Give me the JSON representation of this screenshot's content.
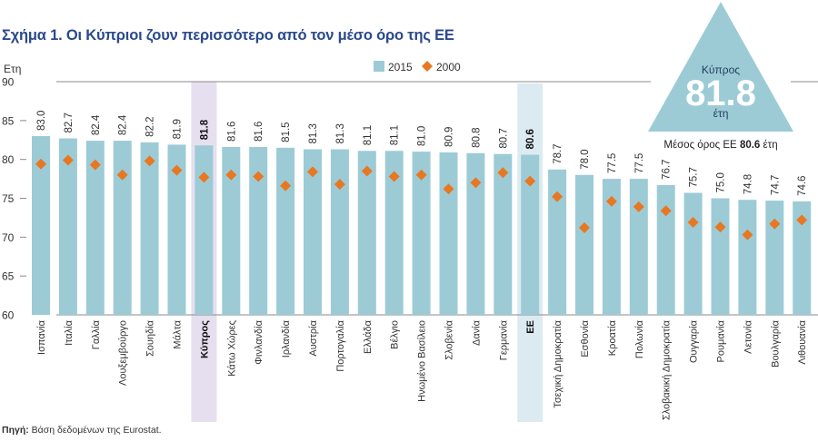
{
  "title": "Σχήμα 1. Οι Κύπριοι ζουν περισσότερο από τον μέσο όρο της ΕΕ",
  "source": {
    "label": "Πηγή:",
    "text": "Βάση δεδομένων της Eurostat."
  },
  "colors": {
    "title": "#2b4a8b",
    "bar_2015": "#9ccbd6",
    "marker_2000": "#e87722",
    "highlight_cyprus": "#e6dff0",
    "highlight_eu": "#dcebf1",
    "triangle": "#9ccbd6"
  },
  "callout": {
    "country": "Κύπρος",
    "value": "81.8",
    "unit": "έτη",
    "eu_avg_prefix": "Μέσος όρος ΕΕ",
    "eu_avg_value": "80.6",
    "eu_avg_unit": "έτη"
  },
  "chart_data": {
    "type": "bar",
    "title": "Σχήμα 1. Οι Κύπριοι ζουν περισσότερο από τον μέσο όρο της ΕΕ",
    "xlabel": "",
    "ylabel": "Ετη",
    "ylim": [
      60,
      90
    ],
    "yticks": [
      60,
      65,
      70,
      75,
      80,
      85,
      90
    ],
    "grid": false,
    "legend": {
      "placement": "top-center",
      "entries": [
        "2015",
        "2000"
      ]
    },
    "highlighted": [
      "Κύπρος",
      "ΕΕ"
    ],
    "categories": [
      "Ισπανία",
      "Ιταλία",
      "Γαλλία",
      "Λουξεμβούργο",
      "Σουηδία",
      "Μάλτα",
      "Κύπρος",
      "Κάτω Χώρες",
      "Φινλανδία",
      "Ιρλανδία",
      "Αυστρία",
      "Πορτογαλία",
      "Ελλάδα",
      "Βέλγιο",
      "Ηνωμένο Βασίλειο",
      "Σλοβενία",
      "Δανία",
      "Γερμανία",
      "ΕΕ",
      "Τσεχική Δημοκρατία",
      "Εσθονία",
      "Κροατία",
      "Πολωνία",
      "Σλοβακική Δημοκρατία",
      "Ουγγαρία",
      "Ρουμανία",
      "Λετονία",
      "Βουλγαρία",
      "Λιθουανία"
    ],
    "series": [
      {
        "name": "2015",
        "kind": "bar",
        "values": [
          83.0,
          82.7,
          82.4,
          82.4,
          82.2,
          81.9,
          81.8,
          81.6,
          81.6,
          81.5,
          81.3,
          81.3,
          81.1,
          81.1,
          81.0,
          80.9,
          80.8,
          80.7,
          80.6,
          78.7,
          78.0,
          77.5,
          77.5,
          76.7,
          75.7,
          75.0,
          74.8,
          74.7,
          74.6
        ],
        "labels": [
          "83.0",
          "82.7",
          "82.4",
          "82.4",
          "82.2",
          "81.9",
          "81.8",
          "81.6",
          "81.6",
          "81.5",
          "81.3",
          "81.3",
          "81.1",
          "81.1",
          "81.0",
          "80.9",
          "80.8",
          "80.7",
          "80.6",
          "78.7",
          "78.0",
          "77.5",
          "77.5",
          "76.7",
          "75.7",
          "75.0",
          "74.8",
          "74.7",
          "74.6"
        ]
      },
      {
        "name": "2000",
        "kind": "diamond-marker",
        "values": [
          79.4,
          79.9,
          79.3,
          78.0,
          79.8,
          78.6,
          77.7,
          78.0,
          77.8,
          76.6,
          78.4,
          76.8,
          78.5,
          77.8,
          78.0,
          76.2,
          77.0,
          78.3,
          77.2,
          75.2,
          71.2,
          74.6,
          73.9,
          73.4,
          71.9,
          71.3,
          70.3,
          71.7,
          72.2
        ]
      }
    ]
  }
}
